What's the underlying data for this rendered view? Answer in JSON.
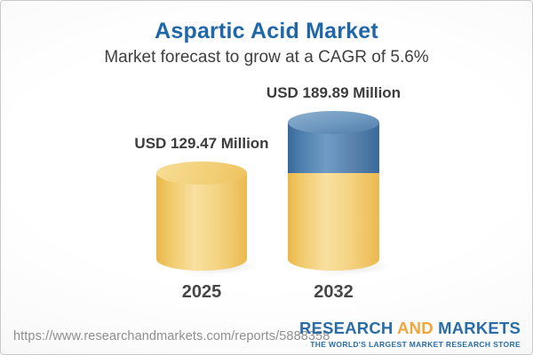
{
  "header": {
    "title": "Aspartic Acid Market",
    "subtitle": "Market forecast to grow at a CAGR of 5.6%"
  },
  "chart_data": {
    "type": "bar",
    "subtype": "3d-cylinder",
    "title": "Aspartic Acid Market",
    "subtitle": "Market forecast to grow at a CAGR of 5.6%",
    "categories": [
      "2025",
      "2032"
    ],
    "values": [
      129.47,
      189.89
    ],
    "value_labels": [
      "USD 129.47 Million",
      "USD 189.89 Million"
    ],
    "unit": "USD Million",
    "cagr_percent": 5.6,
    "legend": false,
    "grid": false,
    "bar_colors": {
      "base": "#f3cf79",
      "growth_segment": "#5585b5"
    }
  },
  "footer": {
    "url": "https://www.researchandmarkets.com/reports/5888358",
    "logo": {
      "research": "RESEARCH",
      "and": "AND",
      "markets": "MARKETS",
      "tagline": "THE WORLD'S LARGEST MARKET RESEARCH STORE"
    }
  },
  "colors": {
    "title_blue": "#1f67a8",
    "logo_blue": "#2a6da6",
    "logo_orange": "#f0a63b",
    "bar_yellow": "#f3cf79",
    "bar_blue": "#5585b5",
    "background_edge": "#e9e9e9"
  }
}
